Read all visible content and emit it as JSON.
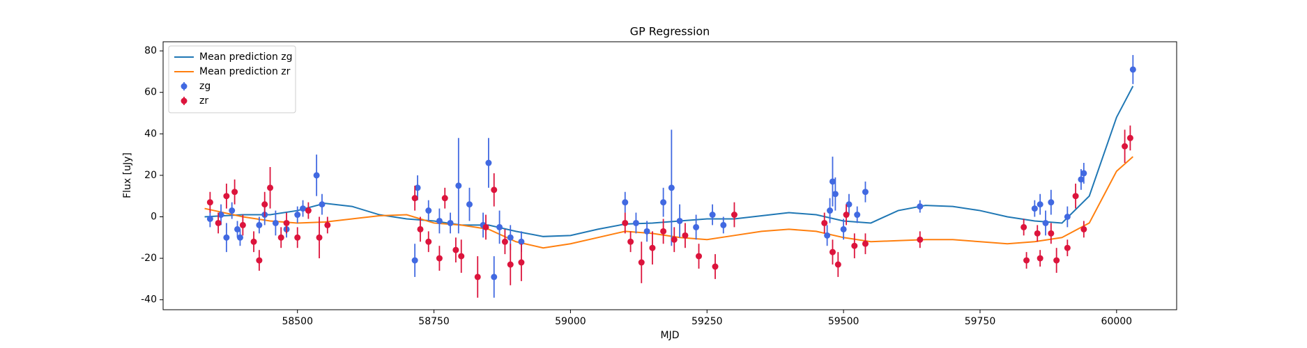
{
  "chart_data": {
    "type": "line",
    "title": "GP Regression",
    "x_label": "MJD",
    "y_label": "Flux [uJy]",
    "xlim": [
      58254,
      60110
    ],
    "ylim": [
      -44.8,
      84.4
    ],
    "xticks": [
      58500,
      58750,
      59000,
      59250,
      59500,
      59750,
      60000
    ],
    "yticks": [
      -40,
      -20,
      0,
      20,
      40,
      60,
      80
    ],
    "legend": "upper left",
    "series": [
      {
        "name": "Mean prediction zg",
        "color": "#1f77b4",
        "style": "line",
        "x": [
          58330,
          58400,
          58450,
          58500,
          58550,
          58600,
          58650,
          58700,
          58750,
          58800,
          58850,
          58900,
          58950,
          59000,
          59050,
          59100,
          59150,
          59200,
          59250,
          59300,
          59350,
          59400,
          59450,
          59500,
          59550,
          59600,
          59650,
          59700,
          59750,
          59800,
          59850,
          59900,
          59950,
          60000,
          60030
        ],
        "values": [
          0,
          1,
          1,
          3,
          6.5,
          5,
          1,
          -1,
          -2,
          -4,
          -4,
          -7,
          -9.5,
          -9,
          -6,
          -3.5,
          -3,
          -2,
          -1,
          -1,
          0.5,
          2,
          1,
          -2,
          -3,
          3,
          5.5,
          5,
          3,
          0,
          -2,
          -3,
          10,
          48,
          63
        ]
      },
      {
        "name": "Mean prediction zr",
        "color": "#ff7f0e",
        "style": "line",
        "x": [
          58330,
          58400,
          58450,
          58500,
          58550,
          58600,
          58650,
          58700,
          58750,
          58800,
          58850,
          58900,
          58950,
          59000,
          59050,
          59100,
          59150,
          59200,
          59250,
          59300,
          59350,
          59400,
          59450,
          59500,
          59550,
          59600,
          59650,
          59700,
          59750,
          59800,
          59850,
          59900,
          59950,
          60000,
          60030
        ],
        "values": [
          4,
          0,
          -2,
          -3,
          -2.5,
          -1,
          0.5,
          1,
          -3,
          -4,
          -6,
          -12,
          -15,
          -13,
          -10,
          -7,
          -8,
          -10,
          -11,
          -9,
          -7,
          -6,
          -7,
          -10,
          -12,
          -11.5,
          -11,
          -11,
          -12,
          -13,
          -12,
          -10,
          -3,
          22,
          29
        ]
      },
      {
        "name": "zg",
        "color": "#4169e1",
        "style": "errorbar",
        "x": [
          58340,
          58360,
          58370,
          58380,
          58390,
          58395,
          58430,
          58440,
          58460,
          58480,
          58500,
          58510,
          58535,
          58545,
          58715,
          58720,
          58740,
          58760,
          58780,
          58795,
          58815,
          58840,
          58850,
          58860,
          58870,
          58890,
          58910,
          59100,
          59120,
          59140,
          59170,
          59185,
          59200,
          59230,
          59260,
          59280,
          59470,
          59475,
          59480,
          59485,
          59500,
          59510,
          59525,
          59540,
          59640,
          59850,
          59860,
          59870,
          59880,
          59910,
          59935,
          59940,
          60030
        ],
        "values": [
          -1,
          1,
          -10,
          3,
          -6,
          -10,
          -4,
          1,
          -3,
          -6,
          1,
          4,
          20,
          6,
          -21,
          14,
          3,
          -2,
          -3,
          15,
          6,
          -4,
          26,
          -29,
          -5,
          -10,
          -12,
          7,
          -3,
          -7,
          7,
          14,
          -2,
          -5,
          1,
          -4,
          -9,
          3,
          17,
          11,
          -6,
          6,
          1,
          12,
          5,
          4,
          6,
          -3,
          7,
          0,
          18,
          21,
          71
        ],
        "errors": [
          4,
          5,
          7,
          4,
          4,
          4,
          4,
          5,
          6,
          4,
          4,
          4,
          10,
          5,
          8,
          6,
          5,
          6,
          5,
          23,
          8,
          6,
          12,
          10,
          8,
          6,
          5,
          5,
          5,
          5,
          7,
          28,
          8,
          6,
          5,
          4,
          5,
          6,
          12,
          8,
          5,
          5,
          4,
          5,
          3,
          4,
          5,
          6,
          6,
          5,
          5,
          5,
          7
        ]
      },
      {
        "name": "zr",
        "color": "#dc143c",
        "style": "errorbar",
        "x": [
          58340,
          58355,
          58370,
          58385,
          58400,
          58420,
          58430,
          58440,
          58450,
          58470,
          58480,
          58500,
          58520,
          58540,
          58555,
          58715,
          58725,
          58740,
          58760,
          58770,
          58790,
          58800,
          58830,
          58845,
          58860,
          58880,
          58890,
          58910,
          59100,
          59110,
          59130,
          59150,
          59170,
          59190,
          59210,
          59235,
          59265,
          59300,
          59465,
          59480,
          59490,
          59505,
          59520,
          59540,
          59640,
          59830,
          59835,
          59855,
          59860,
          59880,
          59890,
          59910,
          59925,
          59940,
          60015,
          60025
        ],
        "values": [
          7,
          -3,
          10,
          12,
          -4,
          -12,
          -21,
          6,
          14,
          -10,
          -3,
          -10,
          3,
          -10,
          -4,
          9,
          -6,
          -12,
          -20,
          9,
          -16,
          -19,
          -29,
          -5,
          13,
          -12,
          -23,
          -22,
          -3,
          -12,
          -22,
          -15,
          -7,
          -11,
          -9,
          -19,
          -24,
          1,
          -3,
          -17,
          -23,
          1,
          -14,
          -13,
          -11,
          -5,
          -21,
          -8,
          -20,
          -8,
          -21,
          -15,
          10,
          -6,
          34,
          38
        ],
        "errors": [
          5,
          5,
          6,
          6,
          5,
          5,
          5,
          6,
          10,
          5,
          5,
          5,
          4,
          10,
          4,
          6,
          6,
          5,
          6,
          5,
          6,
          8,
          10,
          6,
          8,
          6,
          10,
          9,
          5,
          5,
          10,
          8,
          6,
          6,
          6,
          6,
          6,
          6,
          5,
          6,
          6,
          5,
          6,
          5,
          4,
          4,
          4,
          4,
          4,
          5,
          6,
          4,
          6,
          4,
          8,
          6
        ]
      }
    ]
  }
}
